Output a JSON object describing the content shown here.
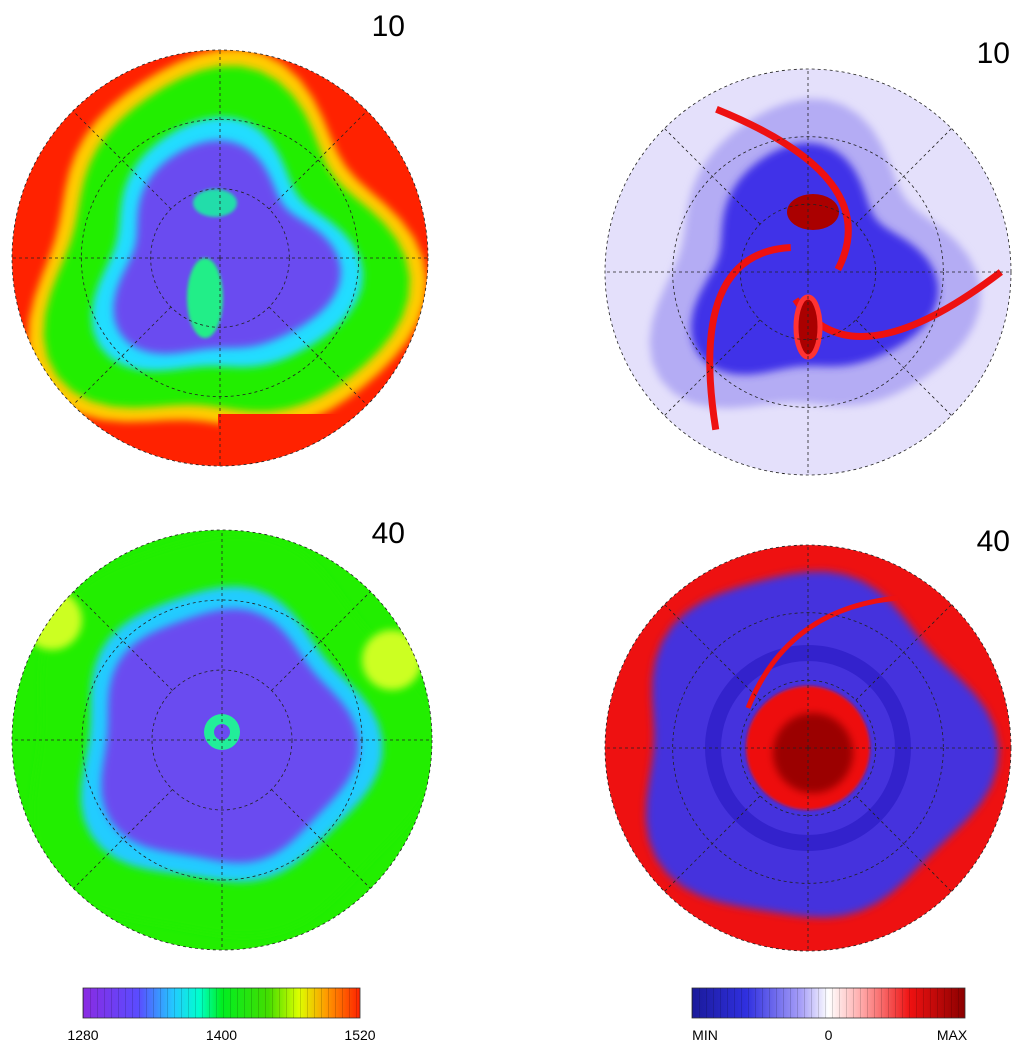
{
  "panels": [
    {
      "label": "10"
    },
    {
      "label": "10"
    },
    {
      "label": "40"
    },
    {
      "label": "40"
    }
  ],
  "colorbars": [
    {
      "ticks": [
        "1280",
        "1400",
        "1520"
      ]
    },
    {
      "ticks": [
        "MIN",
        "0",
        "MAX"
      ]
    }
  ]
}
